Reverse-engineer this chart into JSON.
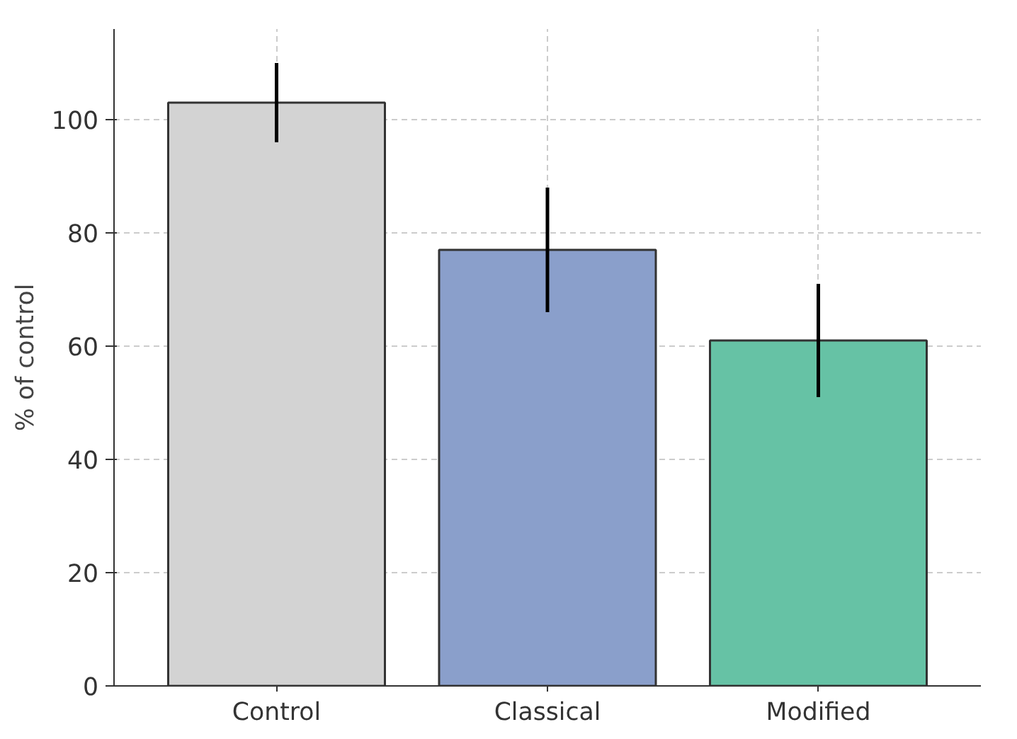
{
  "chart_data": {
    "type": "bar",
    "ylabel": "% of control",
    "categories": [
      "Control",
      "Classical",
      "Modified"
    ],
    "values": [
      103,
      77,
      61
    ],
    "errors": [
      7,
      11,
      10
    ],
    "colors": [
      "#d3d3d3",
      "#8a9fcb",
      "#66c2a5"
    ],
    "ylim": [
      0,
      116
    ],
    "yticks": [
      0,
      20,
      40,
      60,
      80,
      100
    ],
    "grid": true
  }
}
